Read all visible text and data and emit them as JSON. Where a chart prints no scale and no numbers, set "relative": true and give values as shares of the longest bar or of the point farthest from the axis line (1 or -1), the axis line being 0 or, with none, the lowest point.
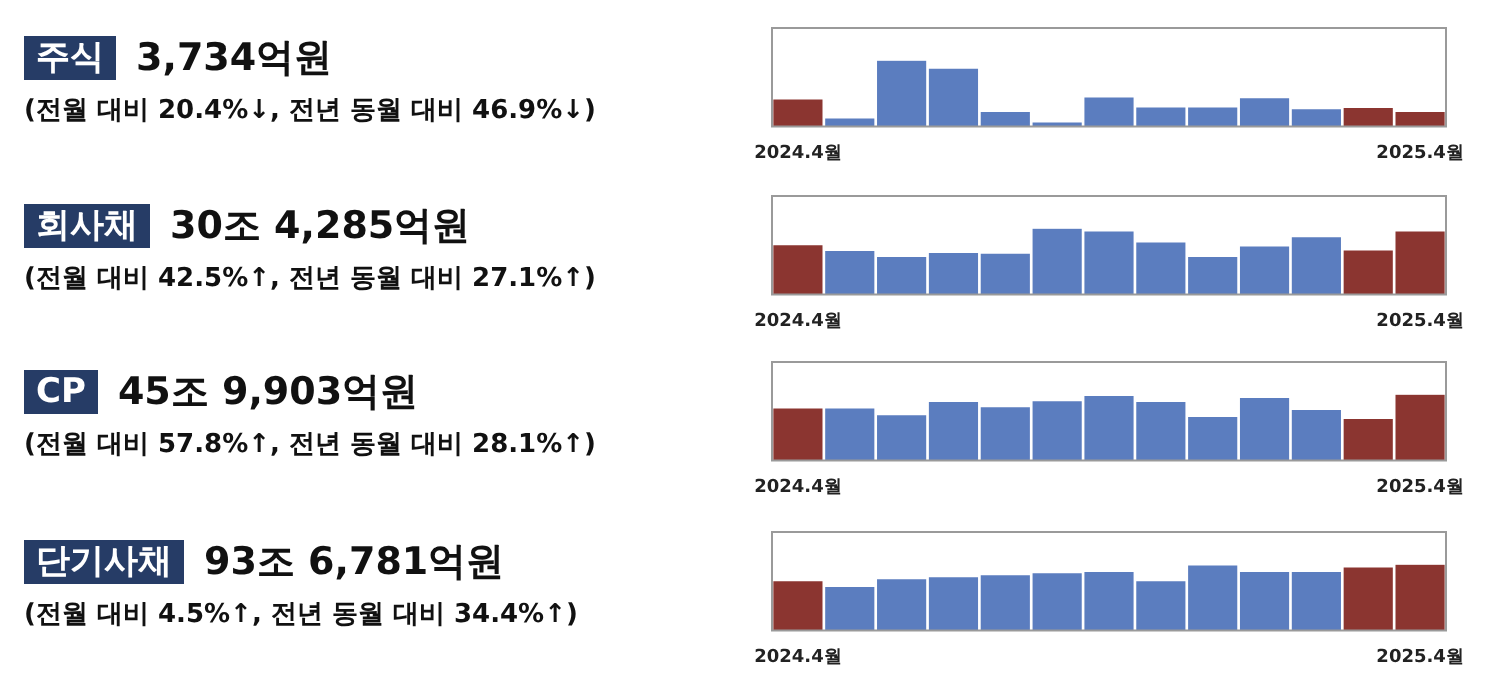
{
  "chart_data": [
    {
      "type": "bar",
      "annotations": [
        "주식",
        "3,734억원",
        "(전월 대비 20.4%↓, 전년 동월 대비 46.9%↓)"
      ],
      "relative": true,
      "categories": [
        "2024.4월",
        null,
        null,
        null,
        null,
        null,
        null,
        null,
        null,
        null,
        null,
        null,
        "2025.4월"
      ],
      "values": [
        0.41,
        0.12,
        1,
        0.88,
        0.22,
        0.06,
        0.44,
        0.29,
        0.29,
        0.43,
        0.26,
        0.28,
        0.22
      ],
      "colors": [
        "#8b3530",
        "#5b7dbf",
        "#5b7dbf",
        "#5b7dbf",
        "#5b7dbf",
        "#5b7dbf",
        "#5b7dbf",
        "#5b7dbf",
        "#5b7dbf",
        "#5b7dbf",
        "#5b7dbf",
        "#8b3530",
        "#8b3530"
      ],
      "grid": false,
      "legend": false
    },
    {
      "type": "bar",
      "annotations": [
        "회사채",
        "30조 4,285억원",
        "(전월 대비 42.5%↑, 전년 동월 대비 27.1%↑)"
      ],
      "relative": true,
      "categories": [
        "2024.4월",
        null,
        null,
        null,
        null,
        null,
        null,
        null,
        null,
        null,
        null,
        null,
        "2025.4월"
      ],
      "values": [
        0.75,
        0.66,
        0.57,
        0.63,
        0.62,
        1,
        0.96,
        0.79,
        0.57,
        0.73,
        0.87,
        0.67,
        0.96
      ],
      "colors": [
        "#8b3530",
        "#5b7dbf",
        "#5b7dbf",
        "#5b7dbf",
        "#5b7dbf",
        "#5b7dbf",
        "#5b7dbf",
        "#5b7dbf",
        "#5b7dbf",
        "#5b7dbf",
        "#5b7dbf",
        "#8b3530",
        "#8b3530"
      ],
      "grid": false,
      "legend": false
    },
    {
      "type": "bar",
      "annotations": [
        "CP",
        "45조 9,903억원",
        "(전월 대비 57.8%↑, 전년 동월 대비 28.1%↑)"
      ],
      "relative": true,
      "categories": [
        "2024.4월",
        null,
        null,
        null,
        null,
        null,
        null,
        null,
        null,
        null,
        null,
        null,
        "2025.4월"
      ],
      "values": [
        0.79,
        0.79,
        0.69,
        0.89,
        0.81,
        0.9,
        0.98,
        0.89,
        0.66,
        0.95,
        0.77,
        0.63,
        1
      ],
      "colors": [
        "#8b3530",
        "#5b7dbf",
        "#5b7dbf",
        "#5b7dbf",
        "#5b7dbf",
        "#5b7dbf",
        "#5b7dbf",
        "#5b7dbf",
        "#5b7dbf",
        "#5b7dbf",
        "#5b7dbf",
        "#8b3530",
        "#8b3530"
      ],
      "grid": false,
      "legend": false
    },
    {
      "type": "bar",
      "annotations": [
        "단기사채",
        "93조 6,781억원",
        "(전월 대비 4.5%↑, 전년 동월 대비 34.4%↑)"
      ],
      "relative": true,
      "categories": [
        "2024.4월",
        null,
        null,
        null,
        null,
        null,
        null,
        null,
        null,
        null,
        null,
        null,
        "2025.4월"
      ],
      "values": [
        0.75,
        0.66,
        0.78,
        0.81,
        0.84,
        0.87,
        0.89,
        0.75,
        0.99,
        0.89,
        0.89,
        0.96,
        1
      ],
      "colors": [
        "#8b3530",
        "#5b7dbf",
        "#5b7dbf",
        "#5b7dbf",
        "#5b7dbf",
        "#5b7dbf",
        "#5b7dbf",
        "#5b7dbf",
        "#5b7dbf",
        "#5b7dbf",
        "#5b7dbf",
        "#8b3530",
        "#8b3530"
      ],
      "grid": false,
      "legend": false
    }
  ]
}
